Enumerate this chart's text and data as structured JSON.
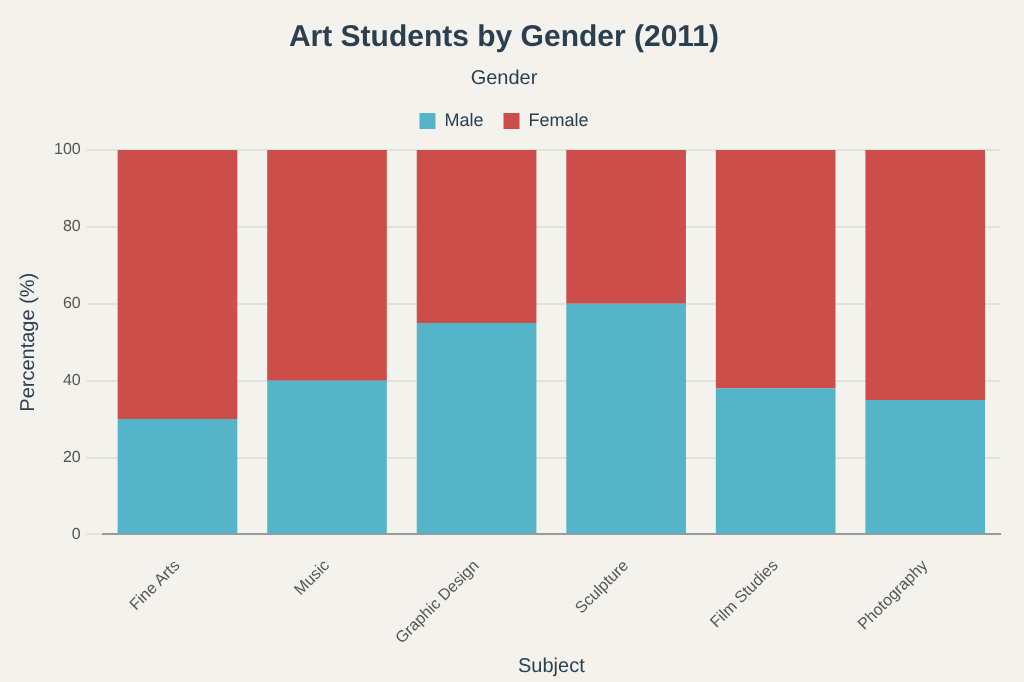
{
  "chart_data": {
    "type": "bar",
    "title": "Art Students by Gender (2011)",
    "xlabel": "Subject",
    "ylabel": "Percentage (%)",
    "legend_title": "Gender",
    "categories": [
      "Fine Arts",
      "Music",
      "Graphic Design",
      "Sculpture",
      "Film Studies",
      "Photography"
    ],
    "series": [
      {
        "name": "Male",
        "color": "#56b4c9",
        "values": [
          30,
          40,
          55,
          60,
          38,
          35
        ]
      },
      {
        "name": "Female",
        "color": "#cc4e4a",
        "values": [
          70,
          60,
          45,
          40,
          62,
          65
        ]
      }
    ],
    "stacked": true,
    "ylim": [
      0,
      100
    ],
    "yticks": [
      0,
      20,
      40,
      60,
      80,
      100
    ],
    "grid": "y",
    "legend": "top"
  }
}
